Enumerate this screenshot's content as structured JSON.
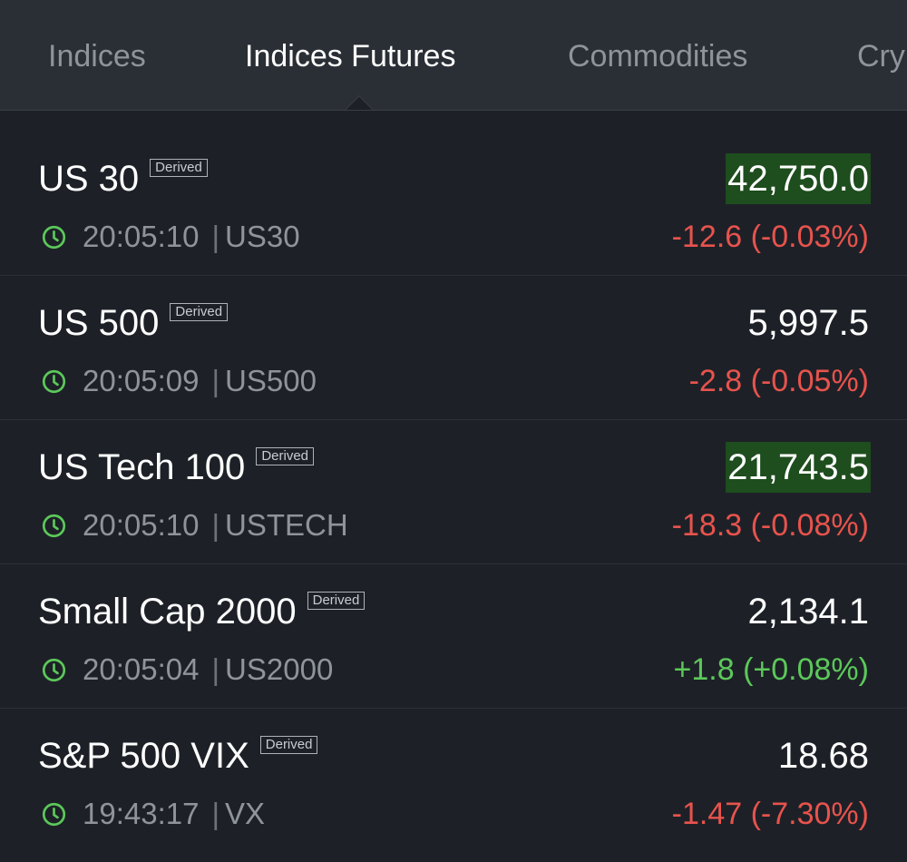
{
  "tabs": [
    {
      "label": "Indices",
      "active": false
    },
    {
      "label": "Indices Futures",
      "active": true
    },
    {
      "label": "Commodities",
      "active": false
    },
    {
      "label": "Crypto",
      "active": false
    }
  ],
  "badge_label": "Derived",
  "rows": [
    {
      "name": "US 30",
      "time": "20:05:10",
      "symbol": "US30",
      "price": "42,750.0",
      "highlight": true,
      "change": "-12.6 (-0.03%)",
      "direction": "down"
    },
    {
      "name": "US 500",
      "time": "20:05:09",
      "symbol": "US500",
      "price": "5,997.5",
      "highlight": false,
      "change": "-2.8 (-0.05%)",
      "direction": "down"
    },
    {
      "name": "US Tech 100",
      "time": "20:05:10",
      "symbol": "USTECH",
      "price": "21,743.5",
      "highlight": true,
      "change": "-18.3 (-0.08%)",
      "direction": "down"
    },
    {
      "name": "Small Cap 2000",
      "time": "20:05:04",
      "symbol": "US2000",
      "price": "2,134.1",
      "highlight": false,
      "change": "+1.8 (+0.08%)",
      "direction": "up"
    },
    {
      "name": "S&P 500 VIX",
      "time": "19:43:17",
      "symbol": "VX",
      "price": "18.68",
      "highlight": false,
      "change": "-1.47 (-7.30%)",
      "direction": "down"
    }
  ],
  "colors": {
    "background": "#1d2127",
    "tabbar": "#2a2e35",
    "positive": "#5cc85a",
    "negative": "#e8534d",
    "highlight": "#1e4d1e"
  },
  "icons": {
    "time": "clock-icon"
  }
}
